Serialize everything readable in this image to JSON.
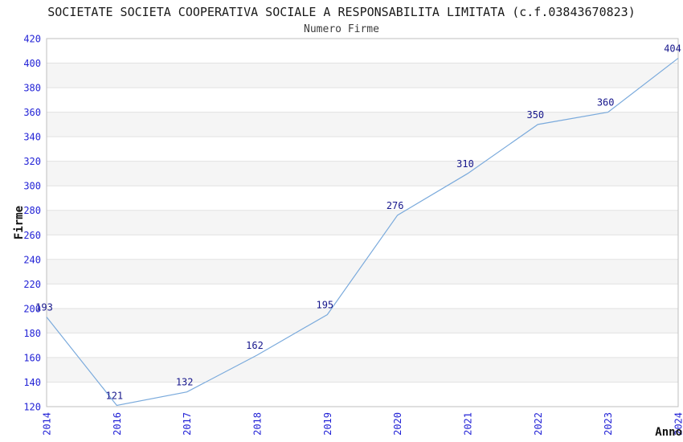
{
  "chart_data": {
    "type": "line",
    "title": "SOCIETATE SOCIETA COOPERATIVA SOCIALE A RESPONSABILITA LIMITATA (c.f.03843670823)",
    "subtitle": "Numero Firme",
    "xlabel": "Anno",
    "ylabel": "Firme",
    "categories": [
      "2014",
      "2016",
      "2017",
      "2018",
      "2019",
      "2020",
      "2021",
      "2022",
      "2023",
      "2024"
    ],
    "values": [
      193,
      121,
      132,
      162,
      195,
      276,
      310,
      350,
      360,
      404
    ],
    "ylim": [
      120,
      420
    ],
    "ytick_step": 20,
    "yticks": [
      120,
      140,
      160,
      180,
      200,
      220,
      240,
      260,
      280,
      300,
      320,
      340,
      360,
      380,
      400,
      420
    ],
    "grid": "horizontal-bands",
    "legend": "none",
    "colors": {
      "line": "#7aaadc",
      "tick_label": "#2323d6",
      "data_label": "#17178c",
      "title": "#1a1a1a",
      "subtitle": "#3d3d3d",
      "axis_label": "#111111",
      "band_fill": "#f5f5f5",
      "gridline": "#e2e2e2",
      "plot_border": "#bfbfbf",
      "background": "#ffffff"
    }
  }
}
